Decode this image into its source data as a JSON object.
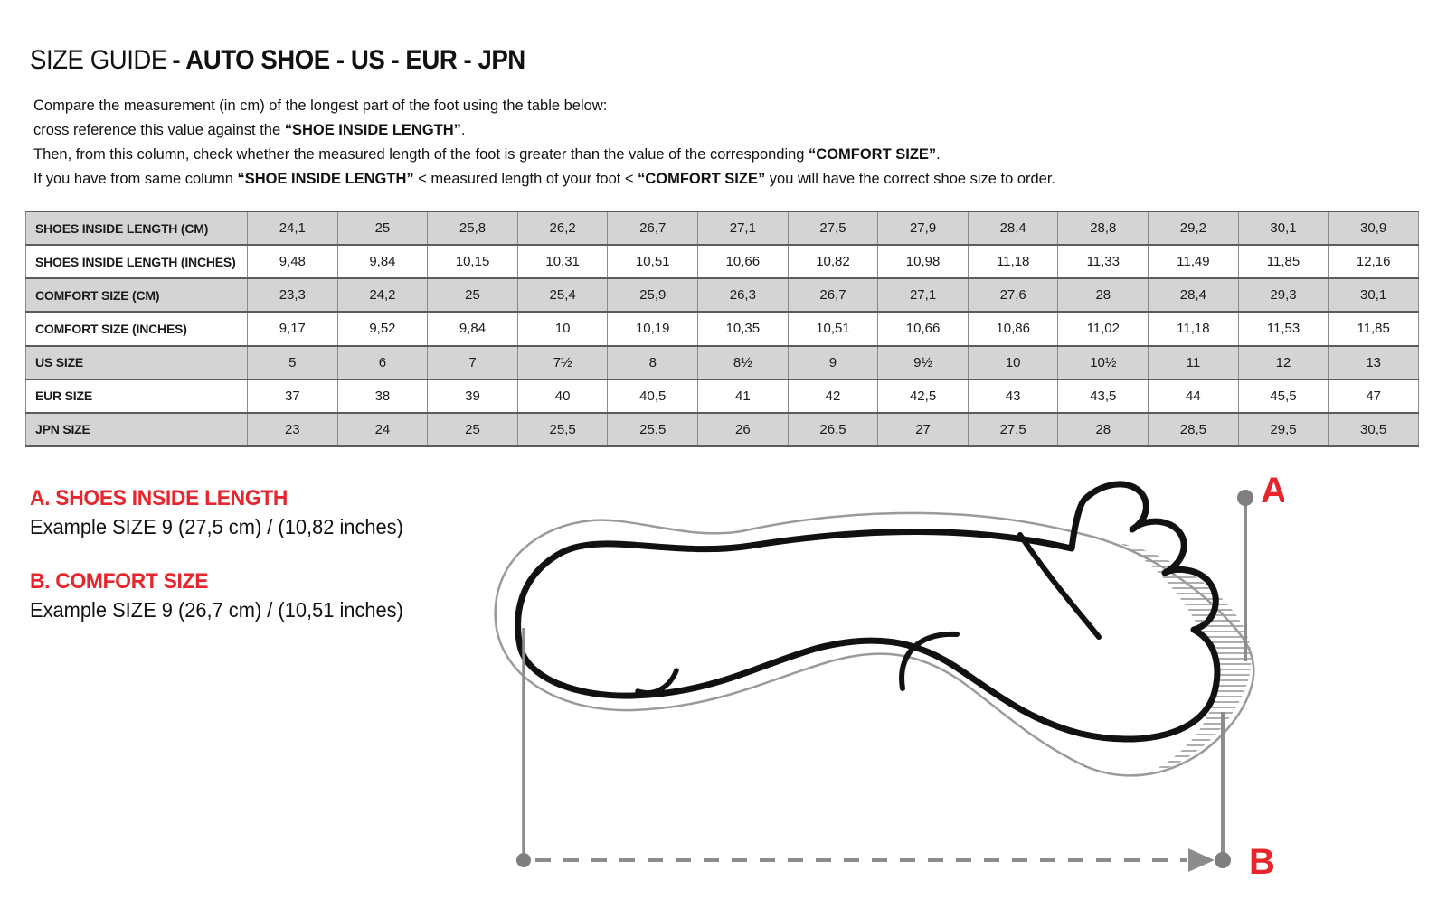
{
  "title": {
    "prefix": "SIZE GUIDE",
    "bold": "- AUTO SHOE - US - EUR - JPN"
  },
  "intro": {
    "line1": "Compare the measurement (in cm) of the longest part of the foot using the table below:",
    "line2_a": "cross reference this value against the ",
    "line2_b": "“SHOE INSIDE LENGTH”",
    "line2_c": ".",
    "line3_a": "Then, from this column, check whether the measured length of the foot is greater than the value of the corresponding ",
    "line3_b": "“COMFORT SIZE”",
    "line3_c": ".",
    "line4_a": "If you have from same column ",
    "line4_b": "“SHOE INSIDE LENGTH”",
    "line4_c": " <  measured length of your foot  < ",
    "line4_d": "“COMFORT SIZE”",
    "line4_e": " you will have the correct shoe size to order."
  },
  "table": {
    "rows": [
      {
        "label": "SHOES INSIDE LENGTH (CM)",
        "values": [
          "24,1",
          "25",
          "25,8",
          "26,2",
          "26,7",
          "27,1",
          "27,5",
          "27,9",
          "28,4",
          "28,8",
          "29,2",
          "30,1",
          "30,9"
        ]
      },
      {
        "label": "SHOES INSIDE LENGTH (INCHES)",
        "values": [
          "9,48",
          "9,84",
          "10,15",
          "10,31",
          "10,51",
          "10,66",
          "10,82",
          "10,98",
          "11,18",
          "11,33",
          "11,49",
          "11,85",
          "12,16"
        ]
      },
      {
        "label": "COMFORT SIZE (CM)",
        "values": [
          "23,3",
          "24,2",
          "25",
          "25,4",
          "25,9",
          "26,3",
          "26,7",
          "27,1",
          "27,6",
          "28",
          "28,4",
          "29,3",
          "30,1"
        ]
      },
      {
        "label": "COMFORT SIZE (INCHES)",
        "values": [
          "9,17",
          "9,52",
          "9,84",
          "10",
          "10,19",
          "10,35",
          "10,51",
          "10,66",
          "10,86",
          "11,02",
          "11,18",
          "11,53",
          "11,85"
        ]
      },
      {
        "label": "US SIZE",
        "values": [
          "5",
          "6",
          "7",
          "7½",
          "8",
          "8½",
          "9",
          "9½",
          "10",
          "10½",
          "11",
          "12",
          "13"
        ]
      },
      {
        "label": "EUR SIZE",
        "values": [
          "37",
          "38",
          "39",
          "40",
          "40,5",
          "41",
          "42",
          "42,5",
          "43",
          "43,5",
          "44",
          "45,5",
          "47"
        ]
      },
      {
        "label": "JPN SIZE",
        "values": [
          "23",
          "24",
          "25",
          "25,5",
          "25,5",
          "26",
          "26,5",
          "27",
          "27,5",
          "28",
          "28,5",
          "29,5",
          "30,5"
        ]
      }
    ]
  },
  "legend": {
    "a_title": "A. SHOES INSIDE LENGTH",
    "a_example": "Example SIZE 9 (27,5 cm) / (10,82 inches)",
    "b_title": "B. COMFORT SIZE",
    "b_example": "Example SIZE 9 (26,7 cm) / (10,51 inches)"
  },
  "diagram": {
    "label_a": "A",
    "label_b": "B"
  },
  "colors": {
    "accent_red": "#e8252c",
    "table_row_gray": "#d4d4d4",
    "table_border": "#5c5c5c",
    "measure_line_gray": "#8c8c8c",
    "foot_outline_black": "#111111"
  }
}
